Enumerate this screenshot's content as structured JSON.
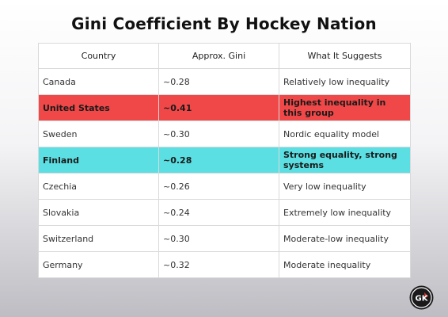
{
  "chart_data": {
    "type": "table",
    "title": "Gini Coefficient By Hockey Nation",
    "columns": [
      "Country",
      "Approx. Gini",
      "What It Suggests"
    ],
    "rows": [
      {
        "country": "Canada",
        "gini": "~0.28",
        "suggests": "Relatively low inequality",
        "highlight": "none"
      },
      {
        "country": "United States",
        "gini": "~0.41",
        "suggests": "Highest inequality in this group",
        "highlight": "red"
      },
      {
        "country": "Sweden",
        "gini": "~0.30",
        "suggests": "Nordic equality model",
        "highlight": "none"
      },
      {
        "country": "Finland",
        "gini": "~0.28",
        "suggests": "Strong equality, strong systems",
        "highlight": "cyan"
      },
      {
        "country": "Czechia",
        "gini": "~0.26",
        "suggests": "Very low inequality",
        "highlight": "none"
      },
      {
        "country": "Slovakia",
        "gini": "~0.24",
        "suggests": "Extremely low inequality",
        "highlight": "none"
      },
      {
        "country": "Switzerland",
        "gini": "~0.30",
        "suggests": "Moderate-low inequality",
        "highlight": "none"
      },
      {
        "country": "Germany",
        "gini": "~0.32",
        "suggests": "Moderate inequality",
        "highlight": "none"
      }
    ],
    "highlight_colors": {
      "red": "#f04848",
      "cyan": "#5bdfe3"
    }
  },
  "logo": {
    "icon": "gk-logo-icon",
    "text": "GK"
  }
}
